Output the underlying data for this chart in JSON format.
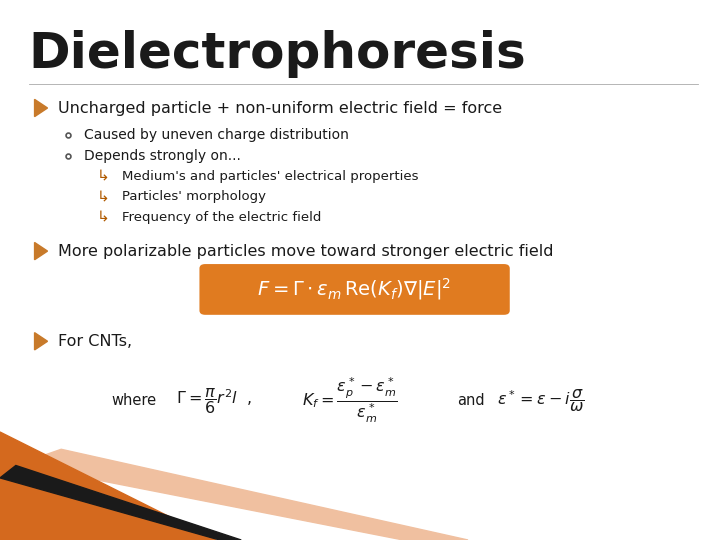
{
  "title": "Dielectrophoresis",
  "title_color": "#1a1a1a",
  "title_fontsize": 36,
  "bg_color": "#ffffff",
  "bullet_color": "#c87a2a",
  "text_color": "#1a1a1a",
  "orange_box_color": "#e07b20",
  "footer_orange": "#d4691e",
  "footer_black": "#1a1a1a",
  "footer_peach": "#f0c0a0",
  "bullet1": "Uncharged particle + non-uniform electric field = force",
  "sub1a": "Caused by uneven charge distribution",
  "sub1b": "Depends strongly on...",
  "sub1b1": "Medium's and particles' electrical properties",
  "sub1b2": "Particles' morphology",
  "sub1b3": "Frequency of the electric field",
  "bullet2": "More polarizable particles move toward stronger electric field",
  "bullet3": "For CNTs,"
}
